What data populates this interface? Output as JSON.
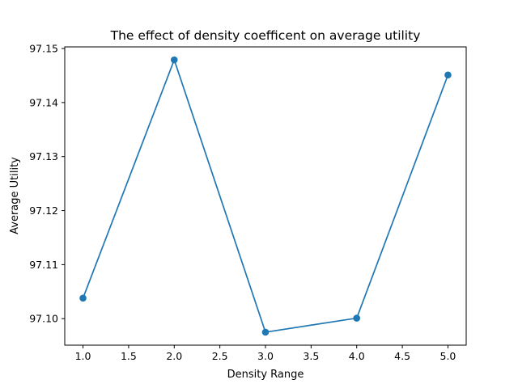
{
  "chart_data": {
    "type": "line",
    "title": "The effect of density coefficent on average utility",
    "xlabel": "Density Range",
    "ylabel": "Average Utility",
    "x": [
      1.0,
      2.0,
      3.0,
      4.0,
      5.0
    ],
    "series": [
      {
        "values": [
          97.1038,
          97.1479,
          97.0975,
          97.1001,
          97.1451
        ],
        "color": "#1f77b4",
        "marker": "circle"
      }
    ],
    "xlim": [
      0.8,
      5.2
    ],
    "ylim": [
      97.0951,
      97.1503
    ],
    "xticks": [
      1.0,
      1.5,
      2.0,
      2.5,
      3.0,
      3.5,
      4.0,
      4.5,
      5.0
    ],
    "xtick_labels": [
      "1.0",
      "1.5",
      "2.0",
      "2.5",
      "3.0",
      "3.5",
      "4.0",
      "4.5",
      "5.0"
    ],
    "yticks": [
      97.1,
      97.11,
      97.12,
      97.13,
      97.14,
      97.15
    ],
    "ytick_labels": [
      "97.10",
      "97.11",
      "97.12",
      "97.13",
      "97.14",
      "97.15"
    ],
    "grid": false,
    "legend": "none"
  }
}
